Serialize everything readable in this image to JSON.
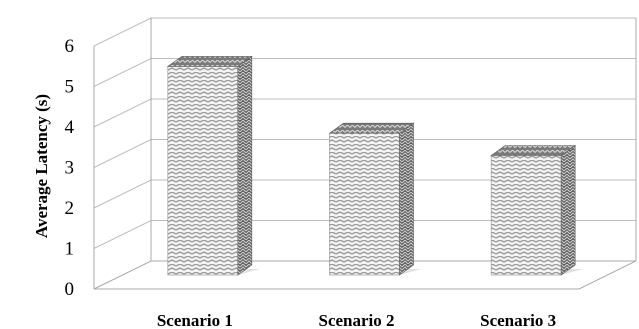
{
  "chart_data": {
    "type": "bar",
    "title": "",
    "xlabel": "",
    "ylabel": "Average Latency (s)",
    "categories": [
      "Scenario 1",
      "Scenario 2",
      "Scenario 3"
    ],
    "values": [
      5.2,
      3.55,
      3.0
    ],
    "ylim": [
      0,
      6
    ],
    "yticks": [
      "0",
      "1",
      "2",
      "3",
      "4",
      "5",
      "6"
    ],
    "grid": true,
    "legend": "none",
    "bar_pattern": "zigzag-hatch",
    "bar_color": "#a9a9a9"
  }
}
